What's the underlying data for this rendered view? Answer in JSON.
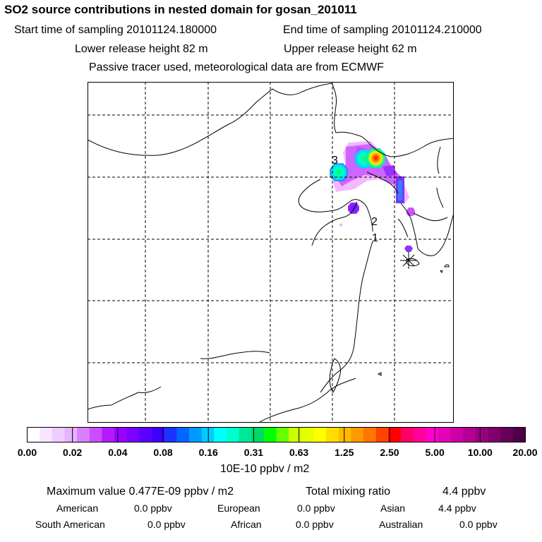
{
  "header": {
    "title": "SO2 source contributions in nested domain for gosan_201011",
    "start_label": "Start time of sampling 20101124.180000",
    "end_label": "End time of sampling 20101124.210000",
    "lower_label": "Lower release height   82 m",
    "upper_label": "Upper release height   62 m",
    "note": "Passive tracer used, meteorological data are from ECMWF"
  },
  "map": {
    "site_labels": [
      "3",
      "2",
      "1"
    ],
    "receptor_marker": "asterisk-icon"
  },
  "colorbar": {
    "colors": [
      "#ffffff",
      "#f6e6ff",
      "#eeccff",
      "#e6b3ff",
      "#d980ff",
      "#cc4dff",
      "#b31aff",
      "#9900ff",
      "#7a00ff",
      "#5c00ff",
      "#3d00ff",
      "#1a33ff",
      "#0066ff",
      "#0099ff",
      "#00ccff",
      "#00ffff",
      "#00ffcc",
      "#00e699",
      "#00d966",
      "#00ff00",
      "#66ff00",
      "#ccff00",
      "#e6ff00",
      "#ffff00",
      "#ffdd00",
      "#ffbb00",
      "#ff9900",
      "#ff7700",
      "#ff4400",
      "#ff0000",
      "#ff0066",
      "#ff0099",
      "#ff00cc",
      "#e600b8",
      "#cc00a6",
      "#b30094",
      "#990080",
      "#80006b",
      "#660058",
      "#4d0045"
    ],
    "tick_labels": [
      "0.00",
      "0.02",
      "0.04",
      "0.08",
      "0.16",
      "0.31",
      "0.63",
      "1.25",
      "2.50",
      "5.00",
      "10.00",
      "20.00"
    ],
    "unit": "10E-10 ppbv / m2"
  },
  "summary": {
    "max_value": "Maximum value  0.477E-09 ppbv / m2",
    "total_label": "Total mixing ratio",
    "total_value": "4.4 ppbv",
    "american_label": "American",
    "american_value": "0.0 ppbv",
    "european_label": "European",
    "european_value": "0.0 ppbv",
    "asian_label": "Asian",
    "asian_value": "4.4 ppbv",
    "south_american_label": "South American",
    "south_american_value": "0.0 ppbv",
    "african_label": "African",
    "african_value": "0.0 ppbv",
    "australian_label": "Australian",
    "australian_value": "0.0 ppbv"
  }
}
